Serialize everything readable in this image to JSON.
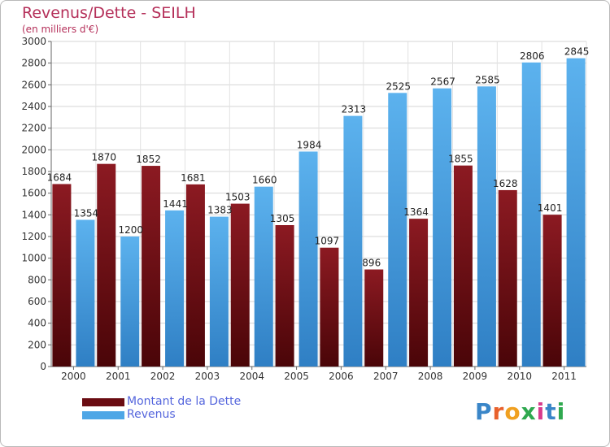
{
  "title": "Revenus/Dette - SEILH",
  "subtitle": "(en milliers d'€)",
  "logo": {
    "text": "Proxiti",
    "letter_colors": [
      "#3a86c8",
      "#e8612c",
      "#f0a020",
      "#2fa84f",
      "#d83b8c",
      "#3a86c8",
      "#2fa84f"
    ]
  },
  "chart_data": {
    "type": "bar",
    "categories": [
      "2000",
      "2001",
      "2002",
      "2003",
      "2004",
      "2005",
      "2006",
      "2007",
      "2008",
      "2009",
      "2010",
      "2011"
    ],
    "series": [
      {
        "name": "Montant de la Dette",
        "color": "#7a1018",
        "values": [
          1684,
          1870,
          1852,
          1681,
          1503,
          1305,
          1097,
          896,
          1364,
          1855,
          1628,
          1401
        ]
      },
      {
        "name": "Revenus",
        "color": "#4ea6e6",
        "values": [
          1354,
          1200,
          1441,
          1383,
          1660,
          1984,
          2313,
          2525,
          2567,
          2585,
          2806,
          2845
        ]
      }
    ],
    "ylim": [
      0,
      3000
    ],
    "yticks": [
      0,
      200,
      400,
      600,
      800,
      1000,
      1200,
      1400,
      1600,
      1800,
      2000,
      2200,
      2400,
      2600,
      2800,
      3000
    ],
    "grid": true,
    "legend": "bottom-left"
  }
}
